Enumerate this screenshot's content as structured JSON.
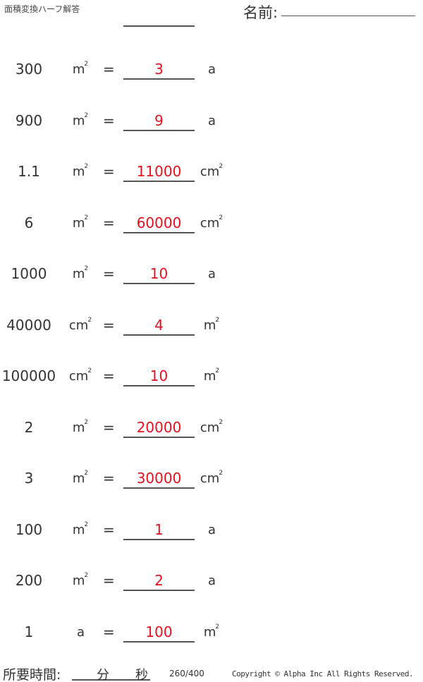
{
  "header": {
    "title": "面積変換ハーフ解答",
    "name_label": "名前:"
  },
  "problems": [
    {
      "value": "300",
      "from": "m",
      "from_sup": "2",
      "answer": "3",
      "to": "a",
      "to_sup": ""
    },
    {
      "value": "900",
      "from": "m",
      "from_sup": "2",
      "answer": "9",
      "to": "a",
      "to_sup": ""
    },
    {
      "value": "1.1",
      "from": "m",
      "from_sup": "2",
      "answer": "11000",
      "to": "cm",
      "to_sup": "2"
    },
    {
      "value": "6",
      "from": "m",
      "from_sup": "2",
      "answer": "60000",
      "to": "cm",
      "to_sup": "2"
    },
    {
      "value": "1000",
      "from": "m",
      "from_sup": "2",
      "answer": "10",
      "to": "a",
      "to_sup": ""
    },
    {
      "value": "40000",
      "from": "cm",
      "from_sup": "2",
      "answer": "4",
      "to": "m",
      "to_sup": "2"
    },
    {
      "value": "100000",
      "from": "cm",
      "from_sup": "2",
      "answer": "10",
      "to": "m",
      "to_sup": "2"
    },
    {
      "value": "2",
      "from": "m",
      "from_sup": "2",
      "answer": "20000",
      "to": "cm",
      "to_sup": "2"
    },
    {
      "value": "3",
      "from": "m",
      "from_sup": "2",
      "answer": "30000",
      "to": "cm",
      "to_sup": "2"
    },
    {
      "value": "100",
      "from": "m",
      "from_sup": "2",
      "answer": "1",
      "to": "a",
      "to_sup": ""
    },
    {
      "value": "200",
      "from": "m",
      "from_sup": "2",
      "answer": "2",
      "to": "a",
      "to_sup": ""
    },
    {
      "value": "1",
      "from": "a",
      "from_sup": "",
      "answer": "100",
      "to": "m",
      "to_sup": "2"
    }
  ],
  "equals": "=",
  "footer": {
    "time_label": "所要時間:",
    "minutes": "分",
    "seconds": "秒",
    "page": "260/400",
    "copyright": "Copyright © Alpha Inc All Rights Reserved."
  },
  "colors": {
    "answer": "#e8101e",
    "text": "#333333"
  }
}
